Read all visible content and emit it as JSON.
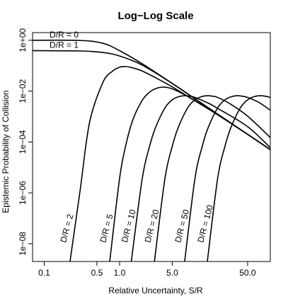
{
  "chart_data": {
    "type": "line",
    "title": "Log−Log Scale",
    "xlabel": "Relative Uncertainty, S/R",
    "ylabel": "Epistemic Probability of Collision",
    "x_scale": "log",
    "y_scale": "log",
    "xlim": [
      0.07,
      100
    ],
    "ylim": [
      2e-09,
      2
    ],
    "x_ticks": [
      {
        "value": 0.1,
        "label": "0.1"
      },
      {
        "value": 0.5,
        "label": "0.5"
      },
      {
        "value": 1,
        "label": "1.0"
      },
      {
        "value": 5,
        "label": "5.0"
      },
      {
        "value": 50,
        "label": "50.0"
      }
    ],
    "y_ticks": [
      {
        "value": 1,
        "label": "1e+00"
      },
      {
        "value": 0.01,
        "label": "1e−02"
      },
      {
        "value": 0.0001,
        "label": "1e−04"
      },
      {
        "value": 1e-06,
        "label": "1e−06"
      },
      {
        "value": 1e-08,
        "label": "1e−08"
      }
    ],
    "grid": false,
    "series": [
      {
        "name": "D/R = 0",
        "d": 0,
        "label_pos": "top",
        "points": [
          [
            0.07,
            1
          ],
          [
            0.3,
            0.98
          ],
          [
            0.6,
            0.76
          ],
          [
            1.0,
            0.39
          ],
          [
            2.0,
            0.118
          ],
          [
            5.0,
            0.02
          ],
          [
            10,
            0.005
          ],
          [
            20,
            0.00125
          ],
          [
            50,
            0.0002
          ],
          [
            100,
            5e-05
          ]
        ]
      },
      {
        "name": "D/R = 1",
        "d": 1,
        "label_pos": "top",
        "points": [
          [
            0.07,
            0.39
          ],
          [
            0.3,
            0.38
          ],
          [
            0.6,
            0.33
          ],
          [
            1.0,
            0.24
          ],
          [
            2.0,
            0.105
          ],
          [
            5.0,
            0.02
          ],
          [
            10,
            0.005
          ],
          [
            20,
            0.00125
          ],
          [
            50,
            0.0002
          ],
          [
            100,
            5e-05
          ]
        ]
      },
      {
        "name": "D/R = 2",
        "d": 2,
        "label_pos": "bottom",
        "points": [
          [
            0.22,
            2e-09
          ],
          [
            0.3,
            1.3e-06
          ],
          [
            0.4,
            0.0006
          ],
          [
            0.6,
            0.0218
          ],
          [
            0.8,
            0.06
          ],
          [
            1.0,
            0.0866
          ],
          [
            1.2,
            0.0927
          ],
          [
            1.5,
            0.082
          ],
          [
            2.0,
            0.0617
          ],
          [
            3.0,
            0.0336
          ],
          [
            5.0,
            0.0147
          ],
          [
            10,
            0.00414
          ],
          [
            20,
            0.00118
          ],
          [
            50,
            0.0002
          ],
          [
            100,
            5e-05
          ]
        ]
      },
      {
        "name": "D/R = 5",
        "d": 5,
        "label_pos": "bottom",
        "points": [
          [
            0.74,
            2e-09
          ],
          [
            1.0,
            3.7e-06
          ],
          [
            1.2,
            6.75e-05
          ],
          [
            1.5,
            0.000745
          ],
          [
            2.0,
            0.00437
          ],
          [
            2.5,
            0.0091
          ],
          [
            3.0,
            0.0125
          ],
          [
            3.6,
            0.0143
          ],
          [
            4.2,
            0.014
          ],
          [
            5.0,
            0.0123
          ],
          [
            7.0,
            0.00767
          ],
          [
            10,
            0.00423
          ],
          [
            20,
            0.00118
          ],
          [
            50,
            0.0002
          ],
          [
            100,
            5e-05
          ]
        ]
      },
      {
        "name": "D/R = 10",
        "d": 10,
        "label_pos": "bottom",
        "points": [
          [
            1.43,
            2e-09
          ],
          [
            2.0,
            3.7e-06
          ],
          [
            2.5,
            6.75e-05
          ],
          [
            3.0,
            0.00037
          ],
          [
            4.0,
            0.00219
          ],
          [
            5.0,
            0.00455
          ],
          [
            6.0,
            0.00596
          ],
          [
            7.2,
            0.00658
          ],
          [
            8.5,
            0.00633
          ],
          [
            10,
            0.00566
          ],
          [
            15,
            0.00337
          ],
          [
            20,
            0.0021
          ],
          [
            50,
            0.0004
          ],
          [
            100,
            6e-05
          ]
        ]
      },
      {
        "name": "D/R = 20",
        "d": 20,
        "label_pos": "bottom",
        "points": [
          [
            2.9,
            2e-09
          ],
          [
            4.0,
            3.7e-06
          ],
          [
            5.0,
            6.75e-05
          ],
          [
            6.0,
            0.00037
          ],
          [
            8.0,
            0.00219
          ],
          [
            10,
            0.00455
          ],
          [
            12,
            0.00596
          ],
          [
            14.4,
            0.00658
          ],
          [
            17,
            0.00633
          ],
          [
            20,
            0.00566
          ],
          [
            30,
            0.00302
          ],
          [
            50,
            0.00104
          ],
          [
            100,
            0.00015
          ]
        ]
      },
      {
        "name": "D/R = 50",
        "d": 50,
        "label_pos": "bottom",
        "points": [
          [
            7.3,
            2e-09
          ],
          [
            10,
            3.7e-06
          ],
          [
            12.5,
            6.75e-05
          ],
          [
            15,
            0.00037
          ],
          [
            20,
            0.00219
          ],
          [
            25,
            0.00455
          ],
          [
            30,
            0.00596
          ],
          [
            36,
            0.00658
          ],
          [
            42,
            0.00633
          ],
          [
            50,
            0.00566
          ],
          [
            70,
            0.00364
          ],
          [
            100,
            0.00178
          ]
        ]
      },
      {
        "name": "D/R = 100",
        "d": 100,
        "label_pos": "bottom",
        "points": [
          [
            14.6,
            2e-09
          ],
          [
            20,
            3.7e-06
          ],
          [
            25,
            6.75e-05
          ],
          [
            30,
            0.00037
          ],
          [
            40,
            0.00219
          ],
          [
            50,
            0.00455
          ],
          [
            60,
            0.00596
          ],
          [
            72,
            0.00658
          ],
          [
            85,
            0.00633
          ],
          [
            100,
            0.00566
          ]
        ]
      }
    ]
  }
}
